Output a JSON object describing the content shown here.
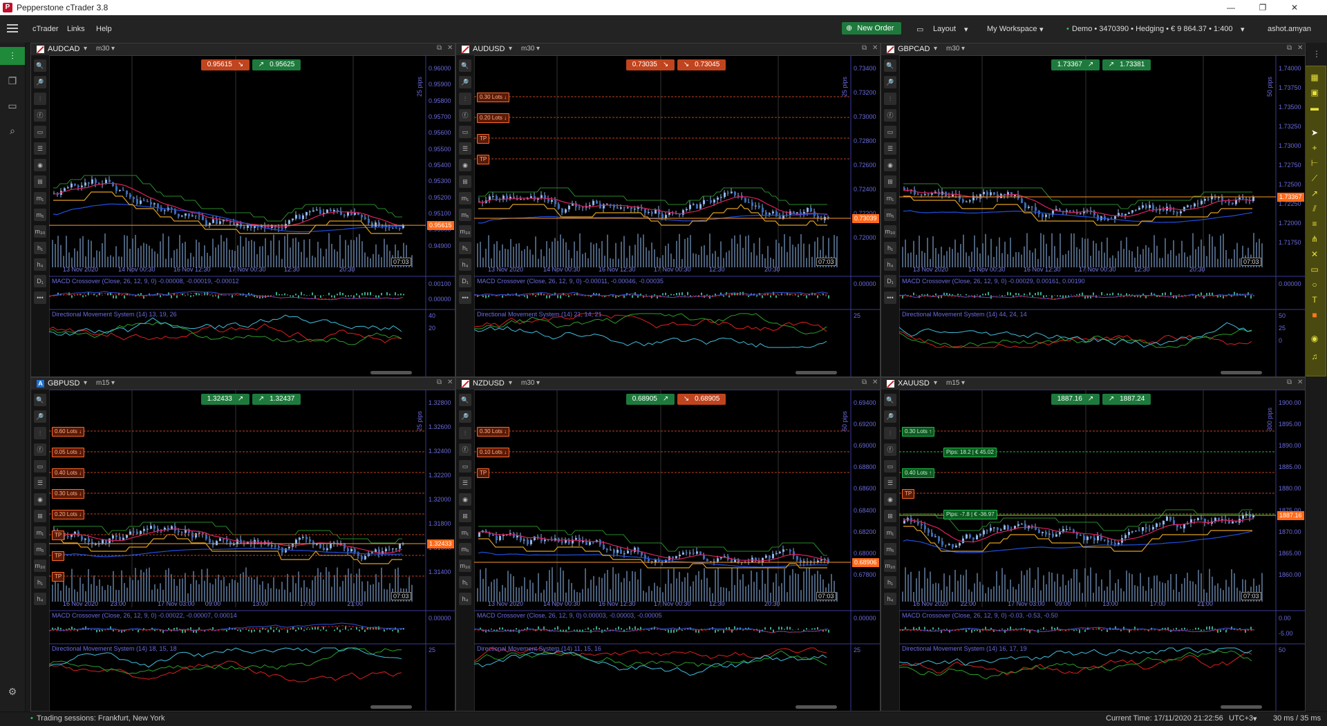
{
  "window": {
    "title": "Pepperstone cTrader 3.8",
    "app_icon": "P",
    "minimize": "—",
    "maximize": "❐",
    "close": "✕"
  },
  "menu": {
    "items": [
      "cTrader",
      "Links",
      "Help"
    ],
    "new_order": "New Order",
    "layout": "Layout",
    "workspace": "My Workspace",
    "account": "Demo • 3470390 • Hedging • € 9 864.37 • 1:400",
    "user": "ashot.amyan"
  },
  "status": {
    "sessions": "Trading sessions: Frankfurt, New York",
    "current_time": "Current Time: 17/11/2020 21:22:56",
    "tz": "UTC+3",
    "latency": "30 ms / 35 ms"
  },
  "colors": {
    "accent_green": "#1e7a3c",
    "sell_red": "#c0441e",
    "price_orange": "#ff7a1a",
    "axis_blue": "#6b6be0",
    "yellow_bar": "#4a4a10"
  },
  "charts": [
    {
      "symbol": "AUDCAD",
      "flag": "red",
      "tf": "m30",
      "bid": "0.95615",
      "ask": "0.95625",
      "bid_dir": "↘",
      "ask_dir": "↗",
      "ask_color": "green",
      "bid_color": "red",
      "price_label": "0.95615",
      "pips_label": "25 pips",
      "prices": [
        "0.96000",
        "0.95900",
        "0.95800",
        "0.95700",
        "0.95600",
        "0.95500",
        "0.95400",
        "0.95300",
        "0.95200",
        "0.95100",
        "0.95000",
        "0.94900"
      ],
      "times": [
        "13 Nov 2020",
        "14 Nov 00:30",
        "16 Nov 12:30",
        "17 Nov 00:30",
        "12:30",
        "20:30"
      ],
      "time_now": "07:03",
      "macd_label": "MACD Crossover (Close, 26, 12, 9, 0) -0.00008, -0.00019, -0.00012",
      "macd_axis": [
        "0.00100",
        "0.00000"
      ],
      "dms_label": "Directional Movement System (14) 13, 19, 26",
      "dms_axis": [
        "40",
        "20"
      ],
      "lots": []
    },
    {
      "symbol": "AUDUSD",
      "flag": "red",
      "tf": "m30",
      "bid": "0.73035",
      "ask": "0.73045",
      "bid_dir": "↘",
      "ask_dir": "↘",
      "ask_color": "red",
      "bid_color": "red",
      "price_label": "0.73039",
      "pips_label": "25 pips",
      "prices": [
        "0.73400",
        "0.73200",
        "0.73000",
        "0.72800",
        "0.72600",
        "0.72400",
        "0.72200",
        "0.72000"
      ],
      "times": [
        "13 Nov 2020",
        "14 Nov 00:30",
        "16 Nov 12:30",
        "17 Nov 00:30",
        "12:30",
        "20:30"
      ],
      "time_now": "07:03",
      "macd_label": "MACD Crossover (Close, 26, 12, 9, 0) -0.00011, -0.00046, -0.00035",
      "macd_axis": [
        "0.00000"
      ],
      "dms_label": "Directional Movement System (14) 21, 14, 21",
      "dms_axis": [
        "25"
      ],
      "lots": [
        "0.30 Lots ↓",
        "0.20 Lots ↓",
        "TP",
        "TP"
      ]
    },
    {
      "symbol": "GBPCAD",
      "flag": "red",
      "tf": "m30",
      "bid": "1.73367",
      "ask": "1.73381",
      "bid_dir": "↗",
      "ask_dir": "↗",
      "ask_color": "green",
      "bid_color": "green",
      "price_label": "1.73367",
      "pips_label": "50 pips",
      "prices": [
        "1.74000",
        "1.73750",
        "1.73500",
        "1.73250",
        "1.73000",
        "1.72750",
        "1.72500",
        "1.72250",
        "1.72000",
        "1.71750"
      ],
      "times": [
        "13 Nov 2020",
        "14 Nov 00:30",
        "16 Nov 12:30",
        "17 Nov 00:30",
        "12:30",
        "20:30"
      ],
      "time_now": "07:03",
      "macd_label": "MACD Crossover (Close, 26, 12, 9, 0) -0.00029, 0.00161, 0.00190",
      "macd_axis": [
        "0.00000"
      ],
      "dms_label": "Directional Movement System (14) 44, 24, 14",
      "dms_axis": [
        "50",
        "25",
        "0"
      ],
      "lots": []
    },
    {
      "symbol": "GBPUSD",
      "flag": "blue",
      "tf": "m15",
      "bid": "1.32433",
      "ask": "1.32437",
      "bid_dir": "↗",
      "ask_dir": "↗",
      "ask_color": "green",
      "bid_color": "green",
      "price_label": "1.32433",
      "pips_label": "25 pips",
      "prices": [
        "1.32800",
        "1.32600",
        "1.32400",
        "1.32200",
        "1.32000",
        "1.31800",
        "1.31600",
        "1.31400"
      ],
      "times": [
        "16 Nov 2020",
        "23:00",
        "17 Nov 03:00",
        "09:00",
        "13:00",
        "17:00",
        "21:00"
      ],
      "time_now": "07:03",
      "macd_label": "MACD Crossover (Close, 26, 12, 9, 0) -0.00022, -0.00007, 0.00014",
      "macd_axis": [
        "0.00000"
      ],
      "dms_label": "Directional Movement System (14) 18, 15, 18",
      "dms_axis": [
        "25"
      ],
      "lots": [
        "0.60 Lots ↓",
        "0.05 Lots ↓",
        "0.40 Lots ↓",
        "0.30 Lots ↓",
        "0.20 Lots ↓",
        "TP",
        "TP",
        "TP"
      ]
    },
    {
      "symbol": "NZDUSD",
      "flag": "red",
      "tf": "m30",
      "bid": "0.68905",
      "ask": "0.68905",
      "bid_dir": "↗",
      "ask_dir": "↘",
      "ask_color": "red",
      "bid_color": "green",
      "price_label": "0.68906",
      "pips_label": "50 pips",
      "prices": [
        "0.69400",
        "0.69200",
        "0.69000",
        "0.68800",
        "0.68600",
        "0.68400",
        "0.68200",
        "0.68000",
        "0.67800"
      ],
      "times": [
        "13 Nov 2020",
        "14 Nov 00:30",
        "16 Nov 12:30",
        "17 Nov 00:30",
        "12:30",
        "20:30"
      ],
      "time_now": "07:03",
      "macd_label": "MACD Crossover (Close, 26, 12, 9, 0) 0.00003, -0.00003, -0.00005",
      "macd_axis": [
        "0.00000"
      ],
      "dms_label": "Directional Movement System (14) 11, 15, 16",
      "dms_axis": [
        "25"
      ],
      "lots": [
        "0.30 Lots ↓",
        "0.10 Lots ↓",
        "TP"
      ]
    },
    {
      "symbol": "XAUUSD",
      "flag": "red",
      "tf": "m15",
      "bid": "1887.16",
      "ask": "1887.24",
      "bid_dir": "↗",
      "ask_dir": "↗",
      "ask_color": "green",
      "bid_color": "green",
      "price_label": "1887.16",
      "pips_label": "300 pips",
      "prices": [
        "1900.00",
        "1895.00",
        "1890.00",
        "1885.00",
        "1880.00",
        "1875.00",
        "1870.00",
        "1865.00",
        "1860.00"
      ],
      "times": [
        "16 Nov 2020",
        "22:00",
        "17 Nov 03:00",
        "09:00",
        "13:00",
        "17:00",
        "21:00"
      ],
      "time_now": "07:03",
      "macd_label": "MACD Crossover (Close, 26, 12, 9, 0) -0.03, -0.53, -0.50",
      "macd_axis": [
        "0.00",
        "-5.00"
      ],
      "dms_label": "Directional Movement System (14) 16, 17, 19",
      "dms_axis": [
        "50"
      ],
      "lots": [
        "0.30 Lots ↑",
        "Pips: 18.2 | € 45.02",
        "0.40 Lots ↑",
        "TP",
        "Pips: -7.8 | € -36.97"
      ]
    }
  ]
}
